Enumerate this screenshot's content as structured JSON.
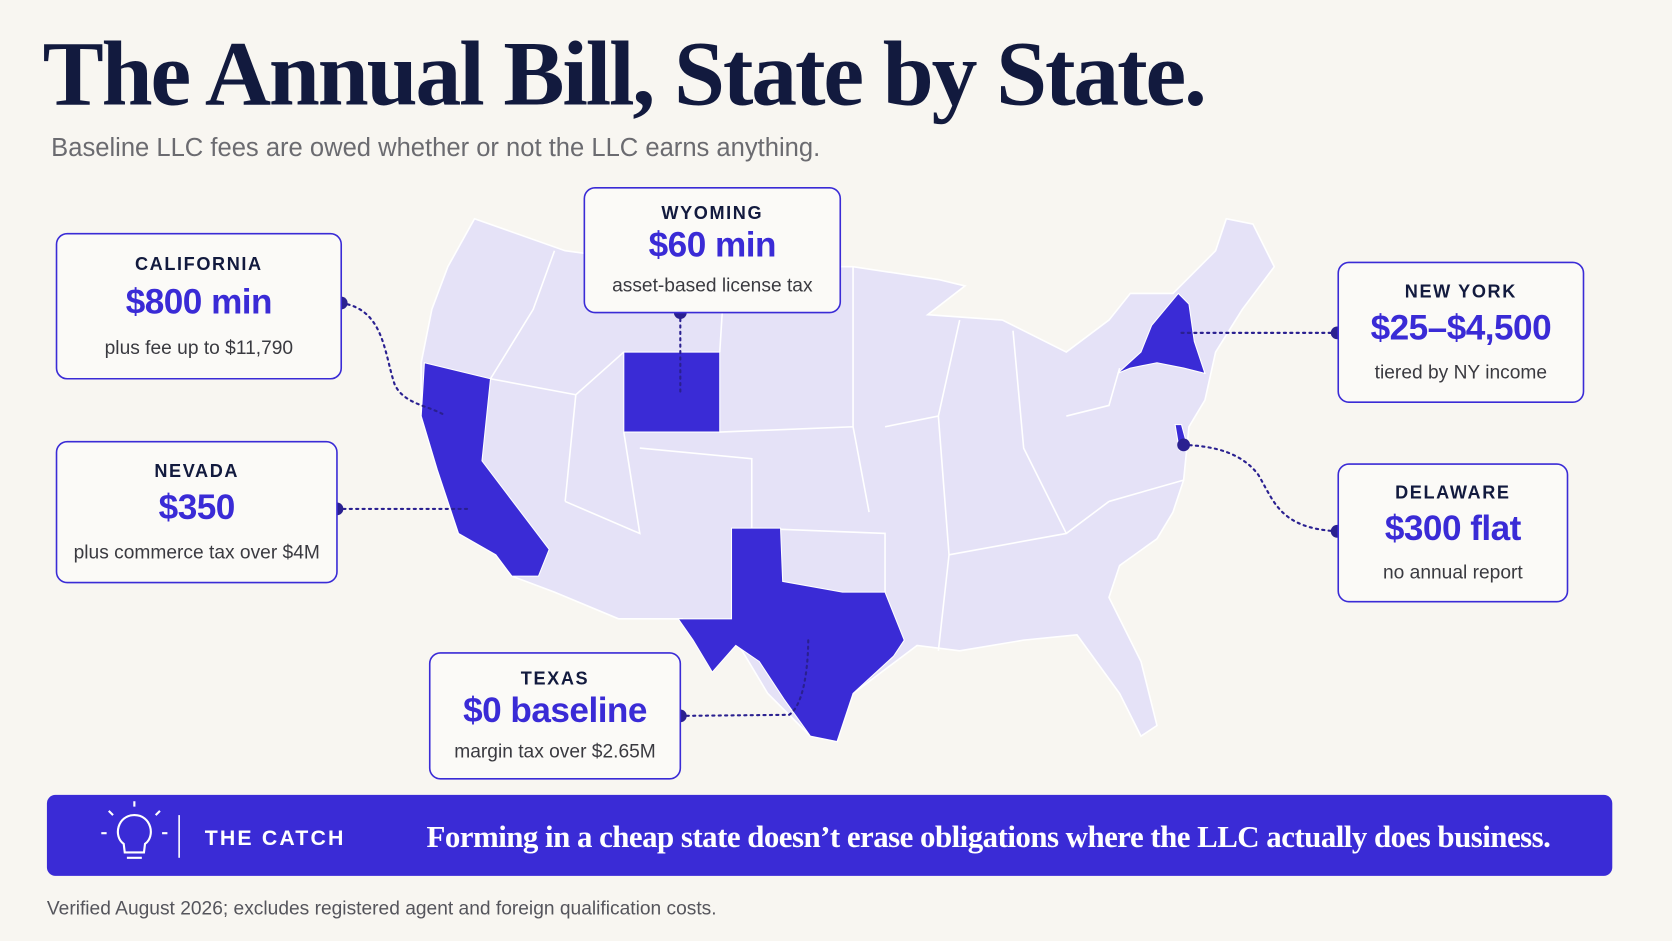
{
  "header": {
    "title": "The Annual Bill, State by State.",
    "subtitle": "Baseline LLC fees are owed whether or not the LLC earns anything."
  },
  "callouts": [
    {
      "state": "CALIFORNIA",
      "amount": "$800 min",
      "note": "plus fee up to $11,790"
    },
    {
      "state": "WYOMING",
      "amount": "$60 min",
      "note": "asset-based license tax"
    },
    {
      "state": "NEW YORK",
      "amount": "$25–$4,500",
      "note": "tiered by NY income"
    },
    {
      "state": "NEVADA",
      "amount": "$350",
      "note": "plus commerce tax over $4M"
    },
    {
      "state": "DELAWARE",
      "amount": "$300 flat",
      "note": "no annual report"
    },
    {
      "state": "TEXAS",
      "amount": "$0 baseline",
      "note": "margin tax over $2.65M"
    }
  ],
  "catch": {
    "label": "THE CATCH",
    "text": "Forming in a cheap state doesn’t erase obligations where the LLC actually does business."
  },
  "footer": "Verified August 2026; excludes registered agent and foreign qualification costs."
}
